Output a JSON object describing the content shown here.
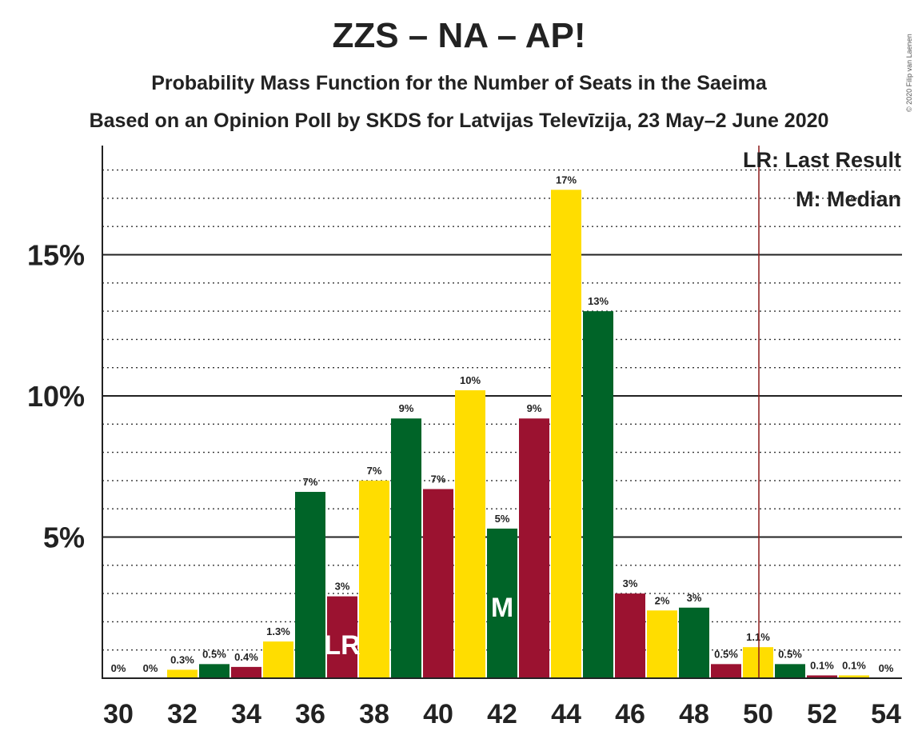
{
  "header": {
    "title": "ZZS – NA – AP!",
    "subtitle1": "Probability Mass Function for the Number of Seats in the Saeima",
    "subtitle2": "Based on an Opinion Poll by SKDS for Latvijas Televīzija, 23 May–2 June 2020",
    "copyright": "© 2020 Filip van Laenen"
  },
  "legend": {
    "last_result": "LR: Last Result",
    "median": "M: Median"
  },
  "colors": {
    "green": "#006428",
    "red": "#9B1230",
    "yellow": "#FFDD00",
    "lr_line": "#8B1A1A"
  },
  "chart_data": {
    "type": "bar",
    "x": [
      30,
      31,
      32,
      33,
      34,
      35,
      36,
      37,
      38,
      39,
      40,
      41,
      42,
      43,
      44,
      45,
      46,
      47,
      48,
      49,
      50,
      51,
      52,
      53,
      54
    ],
    "values": [
      0,
      0,
      0.3,
      0.5,
      0.4,
      1.3,
      6.6,
      2.9,
      7.0,
      9.2,
      6.7,
      10.2,
      5.3,
      9.2,
      17.3,
      13.0,
      3.0,
      2.4,
      2.5,
      0.5,
      1.1,
      0.5,
      0.1,
      0.1,
      0
    ],
    "labels": [
      "0%",
      "0%",
      "0.3%",
      "0.5%",
      "0.4%",
      "1.3%",
      "7%",
      "3%",
      "7%",
      "9%",
      "7%",
      "10%",
      "5%",
      "9%",
      "17%",
      "13%",
      "3%",
      "2%",
      "3%",
      "0.5%",
      "1.1%",
      "0.5%",
      "0.1%",
      "0.1%",
      "0%"
    ],
    "bar_colors": [
      "yellow",
      "green",
      "yellow",
      "green",
      "red",
      "yellow",
      "green",
      "red",
      "yellow",
      "green",
      "red",
      "yellow",
      "green",
      "red",
      "yellow",
      "green",
      "red",
      "yellow",
      "green",
      "red",
      "yellow",
      "green",
      "red",
      "yellow",
      "green"
    ],
    "x_tick_labels": [
      "30",
      "32",
      "34",
      "36",
      "38",
      "40",
      "42",
      "44",
      "46",
      "48",
      "50",
      "52",
      "54"
    ],
    "y_ticks": [
      {
        "value": 5,
        "label": "5%"
      },
      {
        "value": 10,
        "label": "10%"
      },
      {
        "value": 15,
        "label": "15%"
      }
    ],
    "ylim": [
      0,
      18.8
    ],
    "last_result_seat": 37,
    "last_result_marker": "LR",
    "median_seat": 42,
    "median_marker": "M",
    "lr_line_position": 50.5,
    "grid": "dotted minor every 1%, solid major every 5%"
  }
}
